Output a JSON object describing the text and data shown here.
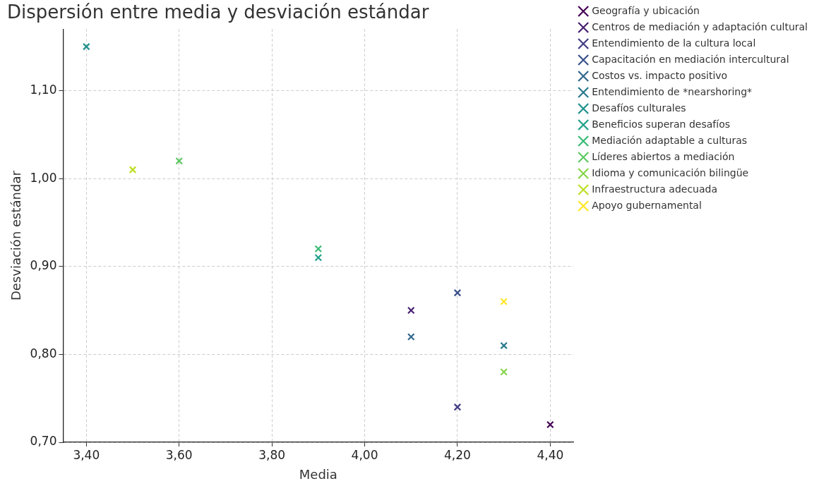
{
  "chart_data": {
    "type": "scatter",
    "title": "Dispersión entre media y desviación estándar",
    "xlabel": "Media",
    "ylabel": "Desviación estándar",
    "xlim": [
      3.35,
      4.45
    ],
    "ylim": [
      0.7,
      1.17
    ],
    "xticks": [
      {
        "value": 3.4,
        "label": "3,40"
      },
      {
        "value": 3.6,
        "label": "3,60"
      },
      {
        "value": 3.8,
        "label": "3,80"
      },
      {
        "value": 4.0,
        "label": "4,00"
      },
      {
        "value": 4.2,
        "label": "4,20"
      },
      {
        "value": 4.4,
        "label": "4,40"
      }
    ],
    "yticks": [
      {
        "value": 0.7,
        "label": "0,70"
      },
      {
        "value": 0.8,
        "label": "0,80"
      },
      {
        "value": 0.9,
        "label": "0,90"
      },
      {
        "value": 1.0,
        "label": "1,00"
      },
      {
        "value": 1.1,
        "label": "1,10"
      }
    ],
    "grid": true,
    "legend": "right",
    "marker": "cross",
    "series": [
      {
        "name": "Geografía y ubicación",
        "color": "#440154",
        "x": [
          4.4
        ],
        "values": [
          0.72
        ]
      },
      {
        "name": "Centros de mediación y adaptación cultural",
        "color": "#482173",
        "x": [
          4.1
        ],
        "values": [
          0.85
        ]
      },
      {
        "name": "Entendimiento de la cultura local",
        "color": "#433e85",
        "x": [
          4.2
        ],
        "values": [
          0.74
        ]
      },
      {
        "name": "Capacitación en mediación intercultural",
        "color": "#3b528b",
        "x": [
          4.2
        ],
        "values": [
          0.87
        ]
      },
      {
        "name": "Costos vs. impacto positivo",
        "color": "#31688e",
        "x": [
          4.1
        ],
        "values": [
          0.82
        ]
      },
      {
        "name": "Entendimiento de *nearshoring*",
        "color": "#29798e",
        "x": [
          4.3
        ],
        "values": [
          0.81
        ]
      },
      {
        "name": "Desafíos culturales",
        "color": "#21918c",
        "x": [
          3.4
        ],
        "values": [
          1.15
        ]
      },
      {
        "name": "Beneficios superan desafíos",
        "color": "#1fa088",
        "x": [
          3.9
        ],
        "values": [
          0.91
        ]
      },
      {
        "name": "Mediación adaptable a culturas",
        "color": "#3bbb75",
        "x": [
          3.9
        ],
        "values": [
          0.92
        ]
      },
      {
        "name": "Líderes abiertos a mediación",
        "color": "#5ec962",
        "x": [
          3.6
        ],
        "values": [
          1.02
        ]
      },
      {
        "name": "Idioma y comunicación bilingüe",
        "color": "#85d54a",
        "x": [
          4.3
        ],
        "values": [
          0.78
        ]
      },
      {
        "name": "Infraestructura adecuada",
        "color": "#bddf26",
        "x": [
          3.5
        ],
        "values": [
          1.01
        ]
      },
      {
        "name": "Apoyo gubernamental",
        "color": "#fde725",
        "x": [
          4.3
        ],
        "values": [
          0.86
        ]
      }
    ]
  }
}
